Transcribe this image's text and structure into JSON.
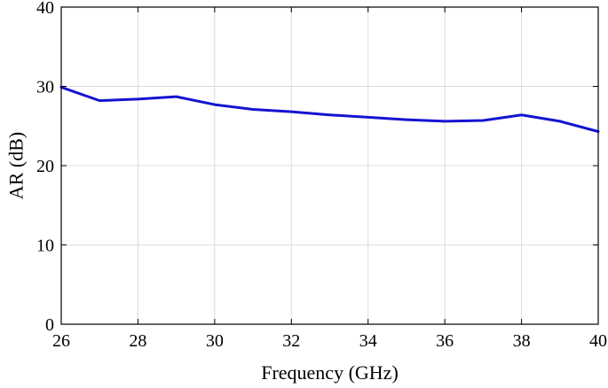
{
  "chart_data": {
    "type": "line",
    "title": "",
    "xlabel": "Frequency (GHz)",
    "ylabel": "AR (dB)",
    "xlim": [
      26,
      40
    ],
    "ylim": [
      0,
      40
    ],
    "xticks": [
      26,
      28,
      30,
      32,
      34,
      36,
      38,
      40
    ],
    "yticks": [
      0,
      10,
      20,
      30,
      40
    ],
    "grid": true,
    "legend": "none",
    "series": [
      {
        "color": "#1414d2",
        "x": [
          26,
          27,
          28,
          29,
          30,
          31,
          32,
          33,
          34,
          35,
          36,
          37,
          38,
          39,
          40
        ],
        "y": [
          29.9,
          28.2,
          28.4,
          28.7,
          27.7,
          27.1,
          26.8,
          26.4,
          26.1,
          25.8,
          25.6,
          25.7,
          26.4,
          25.6,
          24.3
        ]
      }
    ]
  }
}
